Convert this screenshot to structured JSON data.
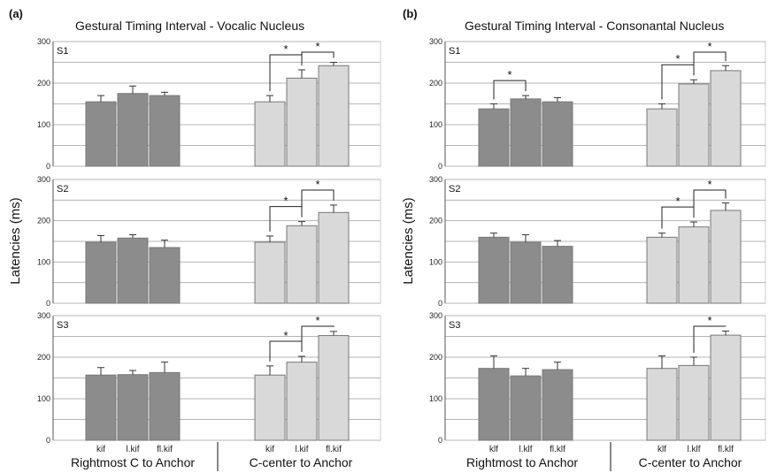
{
  "colors": {
    "dark_bar": "#8c8c8c",
    "light_bar": "#d9d9d9",
    "bar_stroke": "#777777",
    "grid": "#b5b5b5",
    "frame": "#cccccc"
  },
  "chart_data": [
    {
      "type": "bar",
      "panel": "(a)",
      "title": "Gestural Timing Interval - Vocalic Nucleus",
      "ylabel": "Latencies (ms)",
      "ylim": [
        0,
        300
      ],
      "yticks": [
        0,
        100,
        200,
        300
      ],
      "grid": true,
      "categories": [
        "kif",
        "l.kif",
        "fl.kif",
        "kif",
        "l.kif",
        "fl.kif"
      ],
      "groups": [
        {
          "label": "Rightmost C to Anchor",
          "indices": [
            0,
            1,
            2
          ]
        },
        {
          "label": "C-center to Anchor",
          "indices": [
            3,
            4,
            5
          ]
        }
      ],
      "subplots": [
        {
          "name": "S1",
          "values": [
            155,
            175,
            170,
            155,
            212,
            242
          ],
          "errors": [
            15,
            18,
            8,
            15,
            20,
            8
          ],
          "significance": [
            {
              "from": 3,
              "to": 4,
              "label": "*"
            },
            {
              "from": 4,
              "to": 5,
              "label": "*"
            }
          ]
        },
        {
          "name": "S2",
          "values": [
            148,
            158,
            135,
            148,
            188,
            220
          ],
          "errors": [
            16,
            8,
            18,
            15,
            10,
            18
          ],
          "significance": [
            {
              "from": 3,
              "to": 4,
              "label": "*"
            },
            {
              "from": 4,
              "to": 5,
              "label": "*"
            }
          ]
        },
        {
          "name": "S3",
          "values": [
            157,
            158,
            163,
            157,
            188,
            252
          ],
          "errors": [
            18,
            10,
            25,
            22,
            14,
            10
          ],
          "significance": [
            {
              "from": 3,
              "to": 4,
              "label": "*"
            },
            {
              "from": 4,
              "to": 5,
              "label": "*"
            }
          ]
        }
      ]
    },
    {
      "type": "bar",
      "panel": "(b)",
      "title": "Gestural Timing Interval - Consonantal Nucleus",
      "ylabel": "Latencies (ms)",
      "ylim": [
        0,
        300
      ],
      "yticks": [
        0,
        100,
        200,
        300
      ],
      "grid": true,
      "categories": [
        "klf",
        "l.klf",
        "fl.klf",
        "klf",
        "l.klf",
        "fl.klf"
      ],
      "groups": [
        {
          "label": "Rightmost to Anchor",
          "indices": [
            0,
            1,
            2
          ]
        },
        {
          "label": "C-center to Anchor",
          "indices": [
            3,
            4,
            5
          ]
        }
      ],
      "subplots": [
        {
          "name": "S1",
          "values": [
            138,
            162,
            155,
            138,
            198,
            230
          ],
          "errors": [
            12,
            8,
            10,
            12,
            10,
            12
          ],
          "significance": [
            {
              "from": 0,
              "to": 1,
              "label": "*"
            },
            {
              "from": 3,
              "to": 4,
              "label": "*"
            },
            {
              "from": 4,
              "to": 5,
              "label": "*"
            }
          ]
        },
        {
          "name": "S2",
          "values": [
            160,
            148,
            138,
            160,
            185,
            225
          ],
          "errors": [
            10,
            18,
            14,
            10,
            12,
            18
          ],
          "significance": [
            {
              "from": 3,
              "to": 4,
              "label": "*"
            },
            {
              "from": 4,
              "to": 5,
              "label": "*"
            }
          ]
        },
        {
          "name": "S3",
          "values": [
            173,
            155,
            170,
            173,
            180,
            253
          ],
          "errors": [
            30,
            18,
            18,
            30,
            20,
            10
          ],
          "significance": [
            {
              "from": 4,
              "to": 5,
              "label": "*"
            }
          ]
        }
      ]
    }
  ]
}
